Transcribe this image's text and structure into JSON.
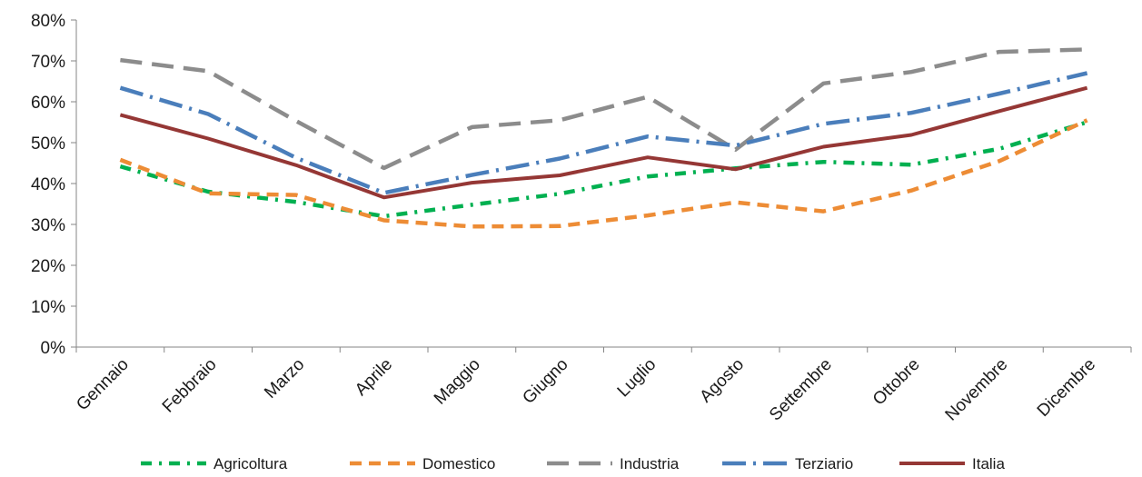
{
  "chart_data": {
    "type": "line",
    "title": "",
    "xlabel": "",
    "ylabel": "",
    "categories": [
      "Gennaio",
      "Febbraio",
      "Marzo",
      "Aprile",
      "Maggio",
      "Giugno",
      "Luglio",
      "Agosto",
      "Settembre",
      "Ottobre",
      "Novembre",
      "Dicembre"
    ],
    "ylim": [
      0,
      80
    ],
    "yticks": [
      "0%",
      "10%",
      "20%",
      "30%",
      "40%",
      "50%",
      "60%",
      "70%",
      "80%"
    ],
    "grid": false,
    "legend_position": "bottom",
    "series": [
      {
        "name": "Agricoltura",
        "color": "#00b050",
        "dash": "dash-dot",
        "values": [
          44.2,
          38.0,
          35.5,
          32.0,
          34.8,
          37.5,
          41.7,
          43.7,
          45.3,
          44.6,
          48.5,
          55.0
        ]
      },
      {
        "name": "Domestico",
        "color": "#ed8c35",
        "dash": "dash",
        "values": [
          45.8,
          37.6,
          37.2,
          31.0,
          29.5,
          29.6,
          32.2,
          35.4,
          33.2,
          38.3,
          45.5,
          55.5
        ]
      },
      {
        "name": "Industria",
        "color": "#8c8c8c",
        "dash": "long-dash",
        "values": [
          70.2,
          67.5,
          55.3,
          43.8,
          53.8,
          55.5,
          61.2,
          48.3,
          64.5,
          67.3,
          72.2,
          72.8
        ]
      },
      {
        "name": "Terziario",
        "color": "#4a7ebb",
        "dash": "long-dash-dot",
        "values": [
          63.4,
          57.0,
          46.3,
          37.7,
          42.1,
          46.1,
          51.5,
          49.3,
          54.6,
          57.3,
          62.0,
          67.0
        ]
      },
      {
        "name": "Italia",
        "color": "#953735",
        "dash": "solid",
        "values": [
          56.8,
          51.0,
          44.5,
          36.6,
          40.2,
          42.0,
          46.4,
          43.5,
          49.0,
          51.9,
          57.7,
          63.4
        ]
      }
    ]
  }
}
